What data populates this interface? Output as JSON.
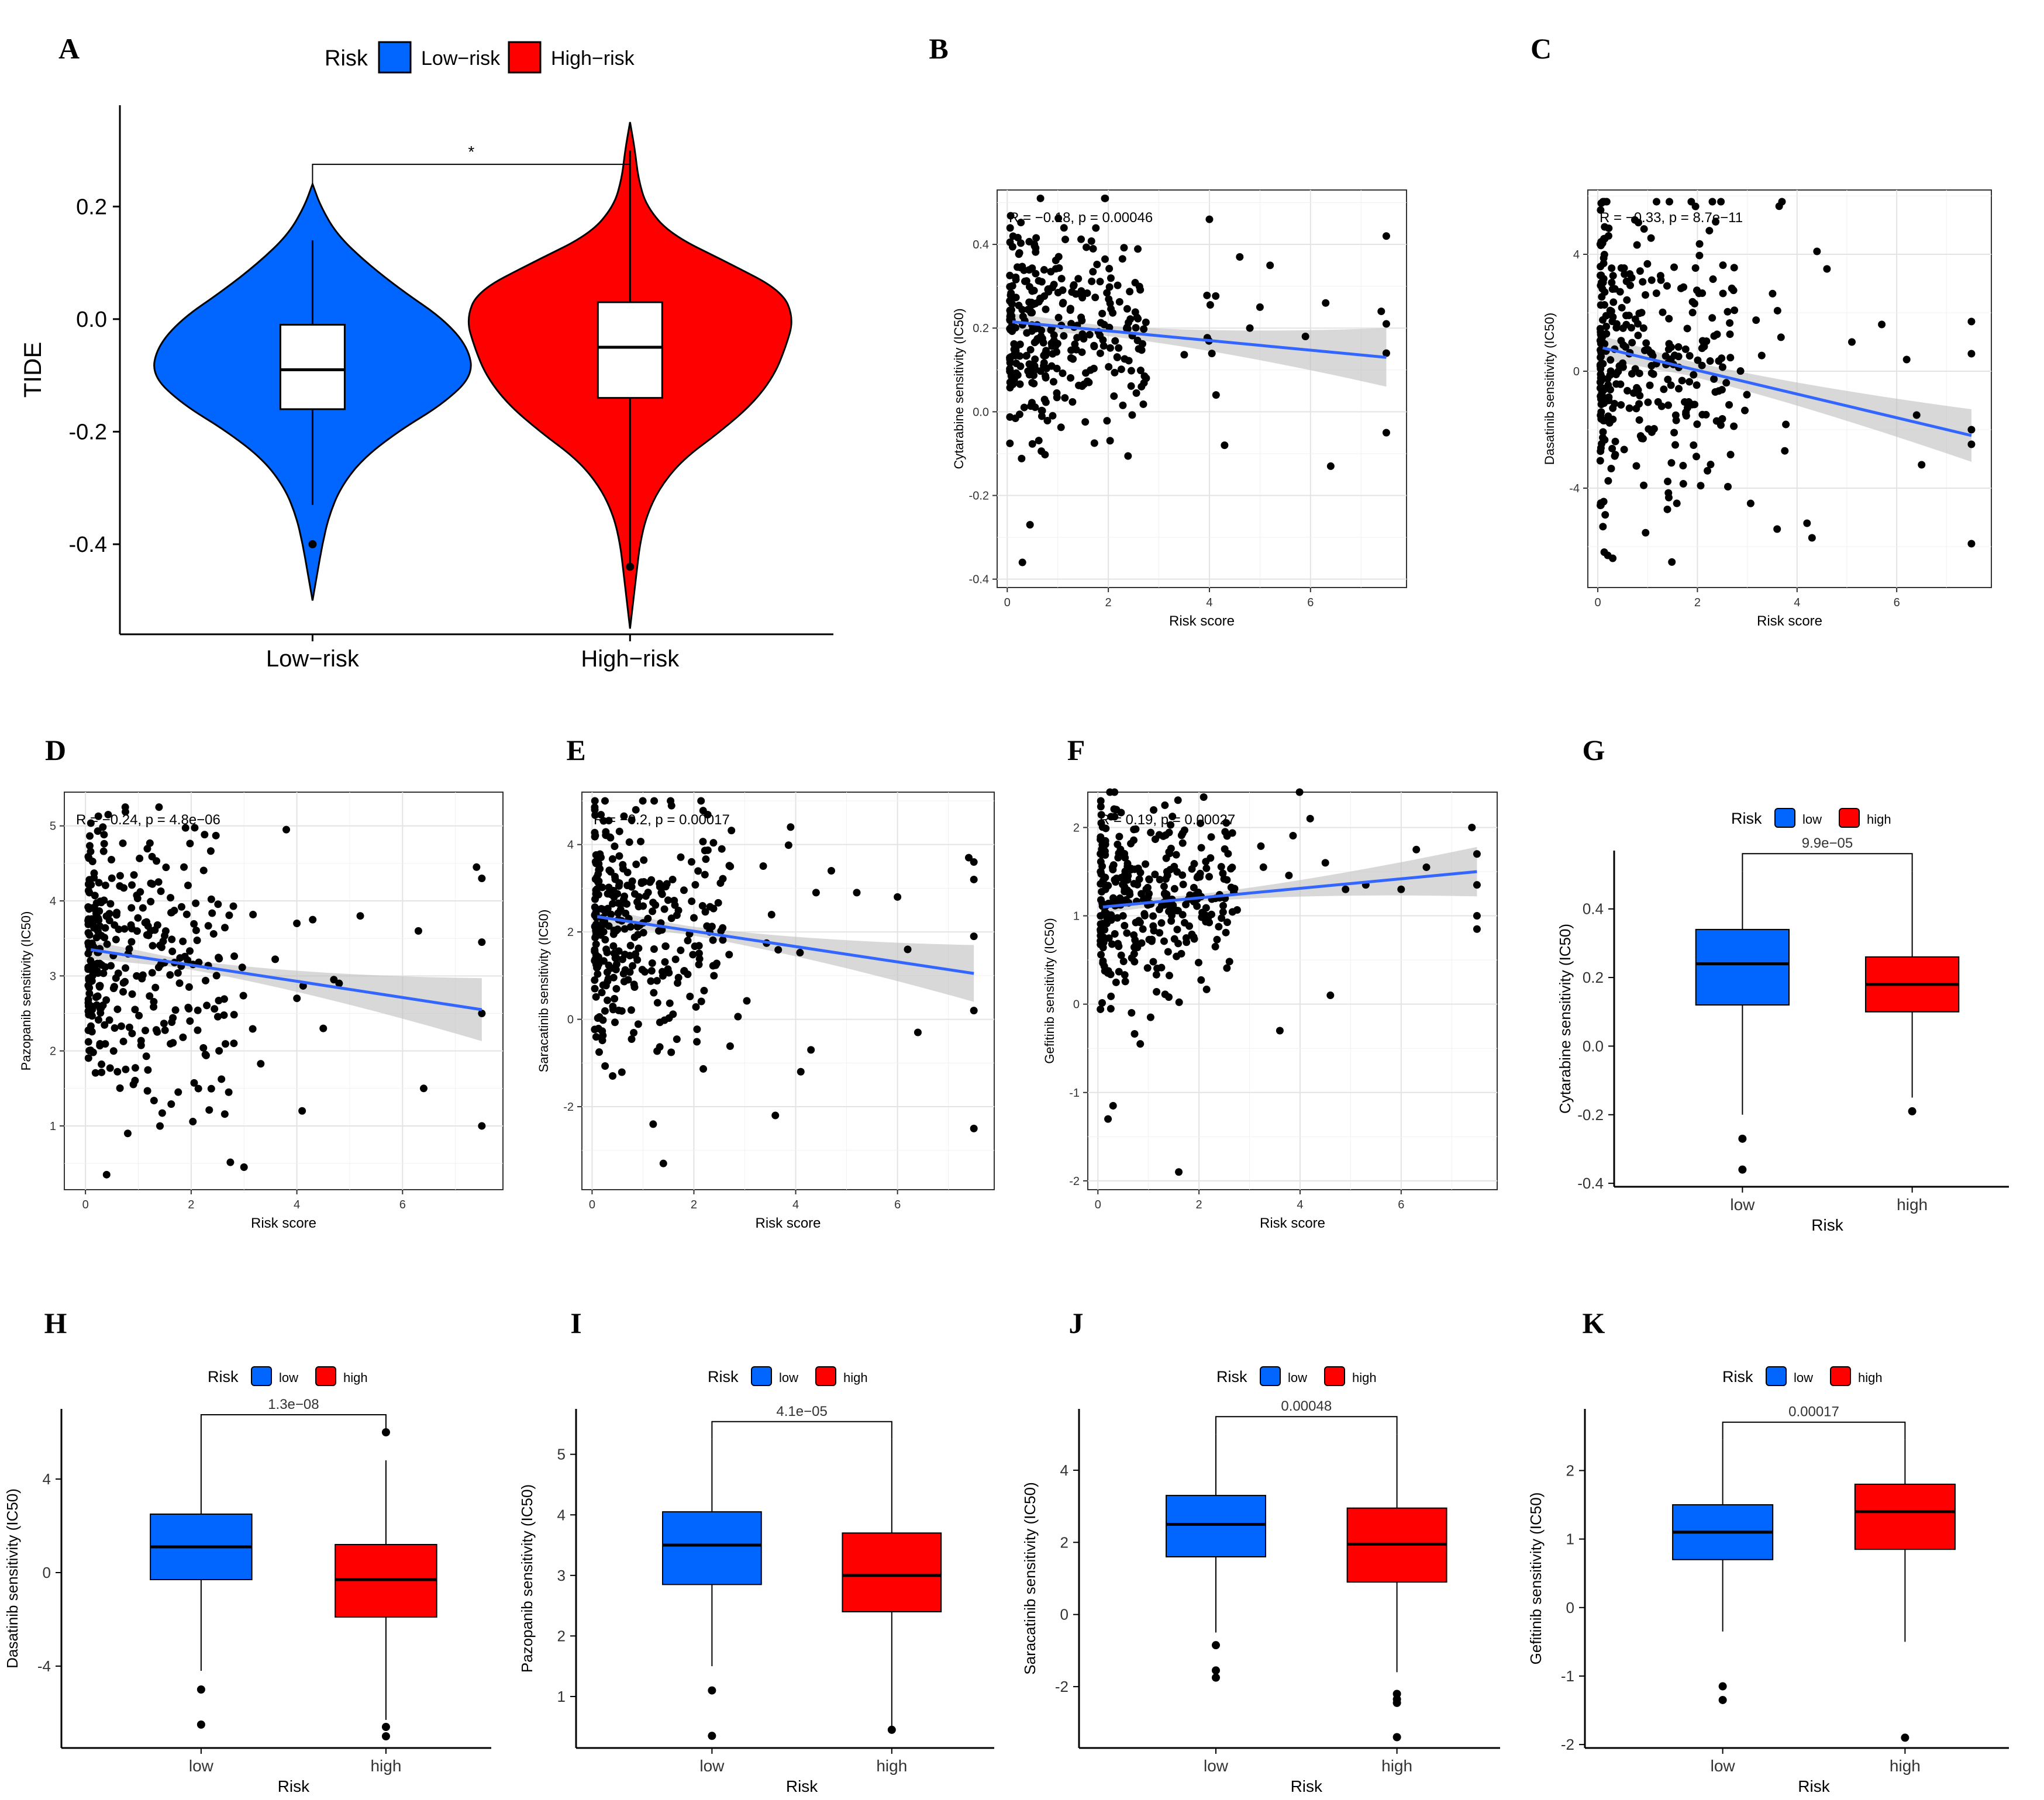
{
  "figure": {
    "panel_labels": [
      "A",
      "B",
      "C",
      "D",
      "E",
      "F",
      "G",
      "H",
      "I",
      "J",
      "K"
    ]
  },
  "colors": {
    "low": "#0066FF",
    "high": "#FF0000",
    "reg": "#3366FF",
    "band": "#BEBEBE"
  },
  "chart_data": [
    {
      "panel": "A",
      "type": "violin",
      "legend_title": "Risk",
      "legend_labels": [
        "Low−risk",
        "High−risk"
      ],
      "categories": [
        "Low−risk",
        "High−risk"
      ],
      "ylabel": "TIDE",
      "xlabel": "",
      "ylim": [
        -0.56,
        0.38
      ],
      "yticks": [
        -0.4,
        -0.2,
        0.0,
        0.2
      ],
      "ytick_labels": [
        "-0.4",
        "-0.2",
        "0.0",
        "0.2"
      ],
      "significance": "*",
      "groups": [
        {
          "name": "Low−risk",
          "min": -0.5,
          "max": 0.24,
          "q1": -0.16,
          "median": -0.09,
          "q3": -0.01,
          "whisker_low": -0.33,
          "whisker_high": 0.14,
          "outliers": [
            -0.4
          ]
        },
        {
          "name": "High−risk",
          "min": -0.55,
          "max": 0.35,
          "q1": -0.14,
          "median": -0.05,
          "q3": 0.03,
          "whisker_low": -0.44,
          "whisker_high": 0.3,
          "outliers": [
            -0.44
          ]
        }
      ],
      "violin_profile_y": [
        -0.5,
        -0.45,
        -0.4,
        -0.35,
        -0.3,
        -0.25,
        -0.2,
        -0.15,
        -0.1,
        -0.05,
        0.0,
        0.05,
        0.1,
        0.15,
        0.2,
        0.24
      ],
      "violin_low_halfwidth": [
        0.0,
        0.03,
        0.06,
        0.1,
        0.17,
        0.3,
        0.52,
        0.8,
        0.98,
        0.95,
        0.8,
        0.55,
        0.33,
        0.15,
        0.05,
        0.0
      ],
      "violin_high_profile_y": [
        -0.55,
        -0.5,
        -0.45,
        -0.4,
        -0.35,
        -0.3,
        -0.25,
        -0.2,
        -0.15,
        -0.1,
        -0.05,
        0.0,
        0.05,
        0.1,
        0.15,
        0.2,
        0.25,
        0.3,
        0.35
      ],
      "violin_high_halfwidth": [
        0.0,
        0.02,
        0.04,
        0.06,
        0.1,
        0.18,
        0.32,
        0.55,
        0.75,
        0.88,
        0.95,
        1.0,
        0.93,
        0.6,
        0.25,
        0.1,
        0.05,
        0.03,
        0.0
      ]
    },
    {
      "panel": "B",
      "type": "scatter",
      "annotation": "R = −0.18, p = 0.00046",
      "xlabel": "Risk score",
      "ylabel": "Cytarabine sensitivity (IC50)",
      "xlim": [
        -0.2,
        7.9
      ],
      "ylim": [
        -0.42,
        0.53
      ],
      "xticks": [
        0,
        2,
        4,
        6
      ],
      "yticks": [
        -0.4,
        -0.2,
        0.0,
        0.2,
        0.4
      ],
      "ytick_labels": [
        "-0.4",
        "-0.2",
        "0.0",
        "0.2",
        "0.4"
      ],
      "regression": {
        "x0": 0.1,
        "y0": 0.215,
        "x1": 7.5,
        "y1": 0.13,
        "band0": 0.02,
        "bandmid": 0.012,
        "band1": 0.07
      },
      "cloud": {
        "n": 330,
        "ymean": 0.21,
        "ysd": 0.13,
        "ymin": -0.36,
        "ymax": 0.51,
        "seed": 11
      },
      "extra_points": [
        [
          4.0,
          0.46
        ],
        [
          4.6,
          0.37
        ],
        [
          5.2,
          0.35
        ],
        [
          6.3,
          0.26
        ],
        [
          6.4,
          -0.13
        ],
        [
          7.5,
          0.42
        ],
        [
          7.5,
          0.21
        ],
        [
          7.5,
          0.14
        ],
        [
          7.5,
          -0.05
        ],
        [
          7.4,
          0.24
        ],
        [
          4.8,
          0.2
        ],
        [
          5.0,
          0.25
        ],
        [
          5.9,
          0.18
        ],
        [
          4.3,
          -0.08
        ],
        [
          0.3,
          -0.36
        ],
        [
          0.45,
          -0.27
        ]
      ]
    },
    {
      "panel": "C",
      "type": "scatter",
      "annotation": "R = −0.33, p = 8.7e−11",
      "xlabel": "Risk score",
      "ylabel": "Dasatinib sensitivity (IC50)",
      "xlim": [
        -0.2,
        7.9
      ],
      "ylim": [
        -7.4,
        6.2
      ],
      "xticks": [
        0,
        2,
        4,
        6
      ],
      "yticks": [
        -4,
        0,
        4
      ],
      "ytick_labels": [
        "-4",
        "0",
        "4"
      ],
      "regression": {
        "x0": 0.1,
        "y0": 0.8,
        "x1": 7.5,
        "y1": -2.2,
        "band0": 0.4,
        "bandmid": 0.25,
        "band1": 0.9
      },
      "cloud": {
        "n": 330,
        "ymean": 0.8,
        "ysd": 2.4,
        "ymin": -6.9,
        "ymax": 5.8,
        "seed": 23
      },
      "extra_points": [
        [
          4.4,
          4.1
        ],
        [
          4.6,
          3.5
        ],
        [
          5.1,
          1.0
        ],
        [
          5.7,
          1.6
        ],
        [
          6.2,
          0.4
        ],
        [
          6.4,
          -1.5
        ],
        [
          6.5,
          -3.2
        ],
        [
          7.5,
          1.7
        ],
        [
          7.5,
          0.6
        ],
        [
          7.5,
          -2.0
        ],
        [
          7.5,
          -2.5
        ],
        [
          7.5,
          -5.9
        ],
        [
          4.3,
          -5.7
        ],
        [
          4.2,
          -5.2
        ],
        [
          3.6,
          -5.4
        ],
        [
          0.2,
          -6.3
        ],
        [
          0.3,
          -6.4
        ]
      ]
    },
    {
      "panel": "D",
      "type": "scatter",
      "annotation": "R = −0.24, p = 4.8e−06",
      "xlabel": "Risk score",
      "ylabel": "Pazopanib sensitivity (IC50)",
      "xlim": [
        -0.4,
        7.9
      ],
      "ylim": [
        0.15,
        5.45
      ],
      "xticks": [
        0,
        2,
        4,
        6
      ],
      "yticks": [
        1,
        2,
        3,
        4,
        5
      ],
      "ytick_labels": [
        "1",
        "2",
        "3",
        "4",
        "5"
      ],
      "regression": {
        "x0": 0.1,
        "y0": 3.35,
        "x1": 7.5,
        "y1": 2.55,
        "band0": 0.12,
        "bandmid": 0.06,
        "band1": 0.42
      },
      "cloud": {
        "n": 330,
        "ymean": 3.35,
        "ysd": 0.95,
        "ymin": 0.35,
        "ymax": 5.25,
        "seed": 37
      },
      "extra_points": [
        [
          3.8,
          4.95
        ],
        [
          4.0,
          3.7
        ],
        [
          4.3,
          3.75
        ],
        [
          5.2,
          3.8
        ],
        [
          6.3,
          3.6
        ],
        [
          6.4,
          1.5
        ],
        [
          7.4,
          4.45
        ],
        [
          7.5,
          4.3
        ],
        [
          7.5,
          3.45
        ],
        [
          7.5,
          2.5
        ],
        [
          7.5,
          1.0
        ],
        [
          4.1,
          1.2
        ],
        [
          4.5,
          2.3
        ],
        [
          3.0,
          0.45
        ],
        [
          0.4,
          0.35
        ],
        [
          0.8,
          0.9
        ],
        [
          4.7,
          2.95
        ],
        [
          4.8,
          2.9
        ]
      ]
    },
    {
      "panel": "E",
      "type": "scatter",
      "annotation": "R = −0.2, p = 0.00017",
      "xlabel": "Risk score",
      "ylabel": "Saracatinib sensitivity (IC50)",
      "xlim": [
        -0.2,
        7.9
      ],
      "ylim": [
        -3.9,
        5.2
      ],
      "xticks": [
        0,
        2,
        4,
        6
      ],
      "yticks": [
        -2,
        0,
        2,
        4
      ],
      "ytick_labels": [
        "-2",
        "0",
        "2",
        "4"
      ],
      "regression": {
        "x0": 0.1,
        "y0": 2.35,
        "x1": 7.5,
        "y1": 1.05,
        "band0": 0.2,
        "bandmid": 0.1,
        "band1": 0.65
      },
      "cloud": {
        "n": 330,
        "ymean": 2.3,
        "ysd": 1.45,
        "ymin": -3.3,
        "ymax": 5.0,
        "seed": 53
      },
      "extra_points": [
        [
          3.9,
          4.4
        ],
        [
          4.4,
          2.9
        ],
        [
          4.7,
          3.4
        ],
        [
          5.2,
          2.9
        ],
        [
          6.0,
          2.8
        ],
        [
          6.2,
          1.6
        ],
        [
          6.4,
          -0.3
        ],
        [
          7.4,
          3.7
        ],
        [
          7.5,
          3.6
        ],
        [
          7.5,
          3.2
        ],
        [
          7.5,
          1.9
        ],
        [
          7.5,
          0.2
        ],
        [
          7.5,
          -2.5
        ],
        [
          4.3,
          -0.7
        ],
        [
          4.1,
          -1.2
        ],
        [
          3.6,
          -2.2
        ],
        [
          1.4,
          -3.3
        ],
        [
          1.2,
          -2.4
        ]
      ]
    },
    {
      "panel": "F",
      "type": "scatter",
      "annotation": "R = 0.19, p = 0.00027",
      "xlabel": "Risk score",
      "ylabel": "Gefitinib sensitivity (IC50)",
      "xlim": [
        -0.2,
        7.9
      ],
      "ylim": [
        -2.1,
        2.4
      ],
      "xticks": [
        0,
        2,
        4,
        6
      ],
      "yticks": [
        -2,
        -1,
        0,
        1,
        2
      ],
      "ytick_labels": [
        "-2",
        "-1",
        "0",
        "1",
        "2"
      ],
      "regression": {
        "x0": 0.1,
        "y0": 1.1,
        "x1": 7.5,
        "y1": 1.5,
        "band0": 0.07,
        "bandmid": 0.04,
        "band1": 0.28
      },
      "cloud": {
        "n": 330,
        "ymean": 1.15,
        "ysd": 0.55,
        "ymin": -0.45,
        "ymax": 2.4,
        "seed": 71
      },
      "extra_points": [
        [
          4.2,
          2.1
        ],
        [
          4.5,
          1.6
        ],
        [
          4.9,
          1.3
        ],
        [
          5.3,
          1.35
        ],
        [
          6.0,
          1.3
        ],
        [
          6.3,
          1.75
        ],
        [
          6.5,
          1.55
        ],
        [
          7.4,
          2.0
        ],
        [
          7.5,
          1.7
        ],
        [
          7.5,
          1.35
        ],
        [
          7.5,
          1.0
        ],
        [
          7.5,
          0.85
        ],
        [
          4.6,
          0.1
        ],
        [
          3.6,
          -0.3
        ],
        [
          0.2,
          -1.3
        ],
        [
          0.3,
          -1.15
        ],
        [
          1.6,
          -1.9
        ]
      ]
    },
    {
      "panel": "G",
      "type": "boxplot",
      "legend_title": "Risk",
      "legend_labels": [
        "low",
        "high"
      ],
      "categories": [
        "low",
        "high"
      ],
      "xlabel": "Risk",
      "ylabel": "Cytarabine sensitivity (IC50)",
      "pvalue": "9.9e−05",
      "ylim": [
        -0.41,
        0.57
      ],
      "yticks": [
        -0.4,
        -0.2,
        0.0,
        0.2,
        0.4
      ],
      "ytick_labels": [
        "-0.4",
        "-0.2",
        "0.0",
        "0.2",
        "0.4"
      ],
      "groups": [
        {
          "name": "low",
          "q1": 0.12,
          "median": 0.24,
          "q3": 0.34,
          "whisker_low": -0.2,
          "whisker_high": 0.51,
          "outliers": [
            -0.27,
            -0.36
          ]
        },
        {
          "name": "high",
          "q1": 0.1,
          "median": 0.18,
          "q3": 0.26,
          "whisker_low": -0.15,
          "whisker_high": 0.51,
          "outliers": [
            -0.19
          ]
        }
      ]
    },
    {
      "panel": "H",
      "type": "boxplot",
      "legend_title": "Risk",
      "legend_labels": [
        "low",
        "high"
      ],
      "categories": [
        "low",
        "high"
      ],
      "xlabel": "Risk",
      "ylabel": "Dasatinib sensitivity (IC50)",
      "pvalue": "1.3e−08",
      "ylim": [
        -7.5,
        7.0
      ],
      "yticks": [
        -4,
        0,
        4
      ],
      "ytick_labels": [
        "-4",
        "0",
        "4"
      ],
      "groups": [
        {
          "name": "low",
          "q1": -0.3,
          "median": 1.1,
          "q3": 2.5,
          "whisker_low": -4.2,
          "whisker_high": 6.0,
          "outliers": [
            -5.0,
            -6.5
          ]
        },
        {
          "name": "high",
          "q1": -1.9,
          "median": -0.3,
          "q3": 1.2,
          "whisker_low": -6.3,
          "whisker_high": 4.8,
          "outliers": [
            6.0,
            -6.6,
            -7.0
          ]
        }
      ]
    },
    {
      "panel": "I",
      "type": "boxplot",
      "legend_title": "Risk",
      "legend_labels": [
        "low",
        "high"
      ],
      "categories": [
        "low",
        "high"
      ],
      "xlabel": "Risk",
      "ylabel": "Pazopanib sensitivity (IC50)",
      "pvalue": "4.1e−05",
      "ylim": [
        0.15,
        5.75
      ],
      "yticks": [
        1,
        2,
        3,
        4,
        5
      ],
      "ytick_labels": [
        "1",
        "2",
        "3",
        "4",
        "5"
      ],
      "groups": [
        {
          "name": "low",
          "q1": 2.85,
          "median": 3.5,
          "q3": 4.05,
          "whisker_low": 1.5,
          "whisker_high": 5.25,
          "outliers": [
            1.1,
            0.35
          ]
        },
        {
          "name": "high",
          "q1": 2.4,
          "median": 3.0,
          "q3": 3.7,
          "whisker_low": 0.5,
          "whisker_high": 5.25,
          "outliers": [
            0.45
          ]
        }
      ]
    },
    {
      "panel": "J",
      "type": "boxplot",
      "legend_title": "Risk",
      "legend_labels": [
        "low",
        "high"
      ],
      "categories": [
        "low",
        "high"
      ],
      "xlabel": "Risk",
      "ylabel": "Saracatinib sensitivity (IC50)",
      "pvalue": "0.00048",
      "ylim": [
        -3.7,
        5.7
      ],
      "yticks": [
        -2,
        0,
        2,
        4
      ],
      "ytick_labels": [
        "-2",
        "0",
        "2",
        "4"
      ],
      "groups": [
        {
          "name": "low",
          "q1": 1.6,
          "median": 2.5,
          "q3": 3.3,
          "whisker_low": -0.5,
          "whisker_high": 5.0,
          "outliers": [
            -0.85,
            -1.55,
            -1.75
          ]
        },
        {
          "name": "high",
          "q1": 0.9,
          "median": 1.95,
          "q3": 2.95,
          "whisker_low": -1.6,
          "whisker_high": 5.0,
          "outliers": [
            -2.2,
            -2.35,
            -2.45,
            -3.4
          ]
        }
      ]
    },
    {
      "panel": "K",
      "type": "boxplot",
      "legend_title": "Risk",
      "legend_labels": [
        "low",
        "high"
      ],
      "categories": [
        "low",
        "high"
      ],
      "xlabel": "Risk",
      "ylabel": "Gefitinib sensitivity (IC50)",
      "pvalue": "0.00017",
      "ylim": [
        -2.05,
        2.9
      ],
      "yticks": [
        -2,
        -1,
        0,
        1,
        2
      ],
      "ytick_labels": [
        "-2",
        "-1",
        "0",
        "1",
        "2"
      ],
      "groups": [
        {
          "name": "low",
          "q1": 0.7,
          "median": 1.1,
          "q3": 1.5,
          "whisker_low": -0.35,
          "whisker_high": 2.45,
          "outliers": [
            -1.15,
            -1.35
          ]
        },
        {
          "name": "high",
          "q1": 0.85,
          "median": 1.4,
          "q3": 1.8,
          "whisker_low": -0.5,
          "whisker_high": 2.45,
          "outliers": [
            -1.9
          ]
        }
      ]
    }
  ]
}
